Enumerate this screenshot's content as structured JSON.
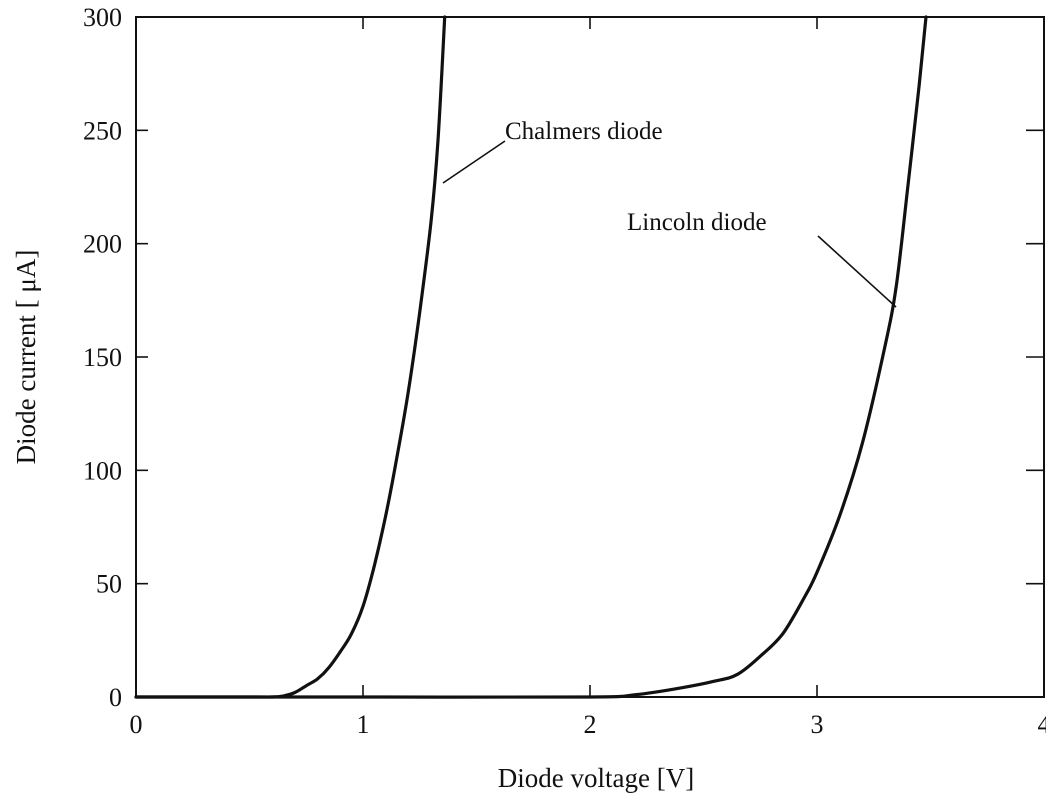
{
  "chart_data": {
    "type": "line",
    "xlabel": "Diode voltage  [V]",
    "ylabel": "Diode current  [ μA]",
    "xlim": [
      0,
      4
    ],
    "ylim": [
      0,
      300
    ],
    "x_ticks": [
      0,
      1,
      2,
      3,
      4
    ],
    "y_ticks": [
      0,
      50,
      100,
      150,
      200,
      250,
      300
    ],
    "x_tick_labels": [
      "0",
      "1",
      "2",
      "3",
      "4"
    ],
    "y_tick_labels": [
      "0",
      "50",
      "100",
      "150",
      "200",
      "250",
      "300"
    ],
    "grid": false,
    "legend": "none",
    "series": [
      {
        "name": "Chalmers diode",
        "x": [
          0,
          0.5,
          0.6,
          0.65,
          0.7,
          0.75,
          0.8,
          0.85,
          0.9,
          0.95,
          1.0,
          1.05,
          1.1,
          1.15,
          1.2,
          1.25,
          1.3,
          1.33,
          1.36
        ],
        "y": [
          0,
          0,
          0,
          0.5,
          2,
          5,
          8,
          13,
          20,
          28,
          40,
          58,
          80,
          106,
          135,
          170,
          210,
          245,
          300
        ]
      },
      {
        "name": "Lincoln diode",
        "x": [
          0,
          1.0,
          2.0,
          2.2,
          2.4,
          2.55,
          2.65,
          2.75,
          2.85,
          2.95,
          3.0,
          3.1,
          3.2,
          3.3,
          3.35,
          3.4,
          3.45,
          3.48
        ],
        "y": [
          0,
          0,
          0,
          1,
          4,
          7,
          10,
          18,
          28,
          45,
          55,
          80,
          112,
          155,
          182,
          225,
          270,
          300
        ]
      }
    ],
    "annotations": [
      {
        "text": "Chalmers diode",
        "series": "Chalmers diode",
        "x": 1.36,
        "y": 228
      },
      {
        "text": "Lincoln diode",
        "series": "Lincoln diode",
        "x": 3.35,
        "y": 173
      }
    ]
  }
}
